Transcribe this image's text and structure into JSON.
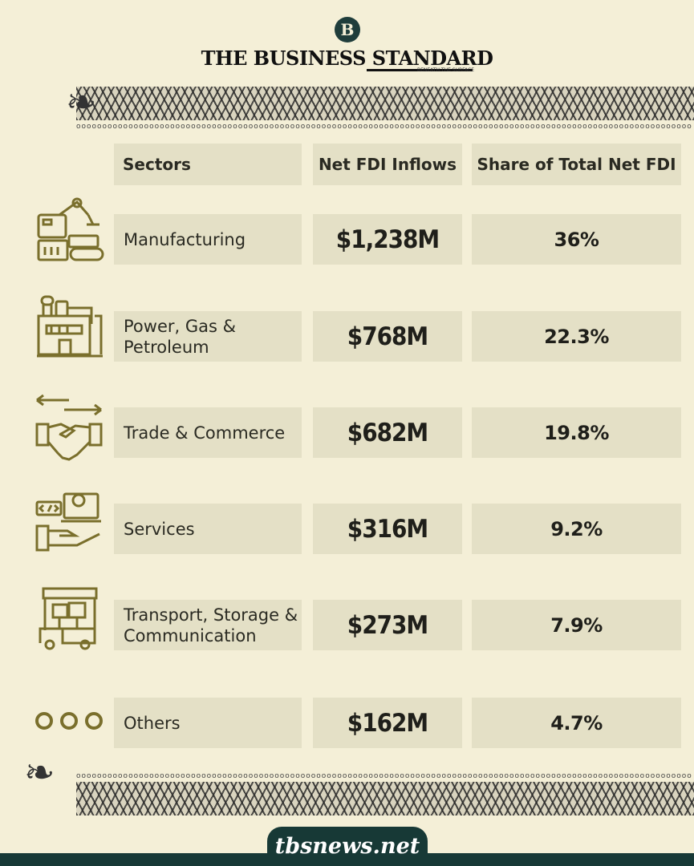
{
  "header": {
    "logo_mark": "B",
    "brand": "THE BUSINESS STANDARD",
    "tagline": "BENEATH THE SURFACE"
  },
  "table": {
    "columns": [
      "Sectors",
      "Net FDI Inflows",
      "Share of Total Net FDI"
    ],
    "rows": [
      {
        "sector": "Manufacturing",
        "value": "$1,238M",
        "share": "36%",
        "icon": "robot-arm-factory-icon"
      },
      {
        "sector": "Power, Gas & Petroleum",
        "value": "$768M",
        "share": "22.3%",
        "icon": "power-plant-icon"
      },
      {
        "sector": "Trade & Commerce",
        "value": "$682M",
        "share": "19.8%",
        "icon": "handshake-arrows-icon"
      },
      {
        "sector": "Services",
        "value": "$316M",
        "share": "9.2%",
        "icon": "laptop-gear-hand-icon"
      },
      {
        "sector": "Transport, Storage & Communication",
        "value": "$273M",
        "share": "7.9%",
        "icon": "warehouse-truck-icon"
      },
      {
        "sector": "Others",
        "value": "$162M",
        "share": "4.7%",
        "icon": "three-circles-icon"
      }
    ]
  },
  "footer": {
    "url": "tbsnews.net"
  },
  "colors": {
    "background": "#f4efd7",
    "cell": "#e4e0c6",
    "icon": "#7a6f2c",
    "footer": "#173936"
  }
}
